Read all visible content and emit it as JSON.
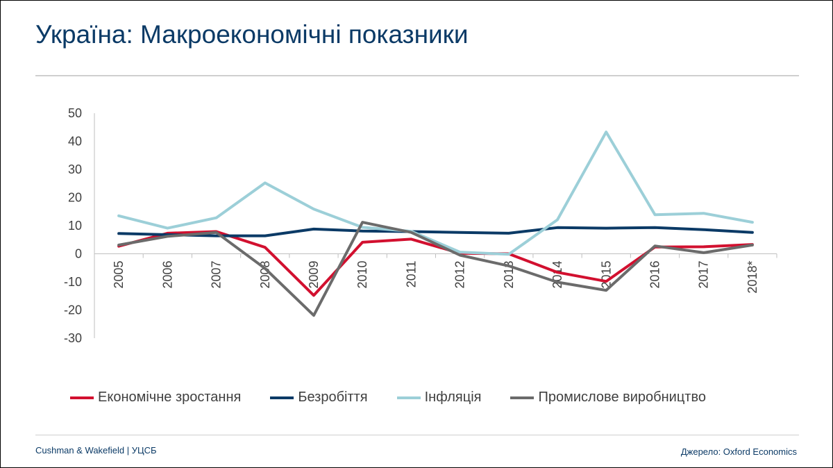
{
  "header": {
    "title": "Україна: Макроекономічні показники"
  },
  "footer": {
    "left": "Cushman & Wakefield | УЦСБ",
    "right": "Джерело: Oxford Economics"
  },
  "chart_data": {
    "type": "line",
    "categories": [
      "2005",
      "2006",
      "2007",
      "2008",
      "2009",
      "2010",
      "2011",
      "2012",
      "2013",
      "2014",
      "2015",
      "2016",
      "2017",
      "2018*"
    ],
    "ylim": [
      -30,
      50
    ],
    "yticks": [
      50,
      40,
      30,
      20,
      10,
      0,
      -10,
      -20,
      -30
    ],
    "grid": false,
    "legend_position": "bottom",
    "series": [
      {
        "name": "Економічне зростання",
        "color": "#d2102f",
        "values": [
          2.7,
          7.3,
          7.9,
          2.3,
          -14.8,
          4.1,
          5.2,
          0.2,
          0.0,
          -6.6,
          -9.8,
          2.4,
          2.5,
          3.3
        ]
      },
      {
        "name": "Безробіття",
        "color": "#0b3a66",
        "values": [
          7.2,
          6.8,
          6.4,
          6.4,
          8.8,
          8.1,
          7.9,
          7.6,
          7.3,
          9.3,
          9.1,
          9.3,
          8.6,
          7.6
        ]
      },
      {
        "name": "Інфляція",
        "color": "#9ccfd8",
        "values": [
          13.5,
          9.1,
          12.8,
          25.2,
          15.9,
          9.4,
          8.0,
          0.6,
          -0.2,
          12.1,
          43.3,
          13.9,
          14.4,
          11.2
        ]
      },
      {
        "name": "Промислове виробництво",
        "color": "#6b6b6b",
        "values": [
          3.1,
          6.2,
          7.6,
          -5.2,
          -21.9,
          11.2,
          7.6,
          -0.5,
          -4.3,
          -10.1,
          -13.0,
          2.8,
          0.4,
          3.1
        ]
      }
    ]
  }
}
